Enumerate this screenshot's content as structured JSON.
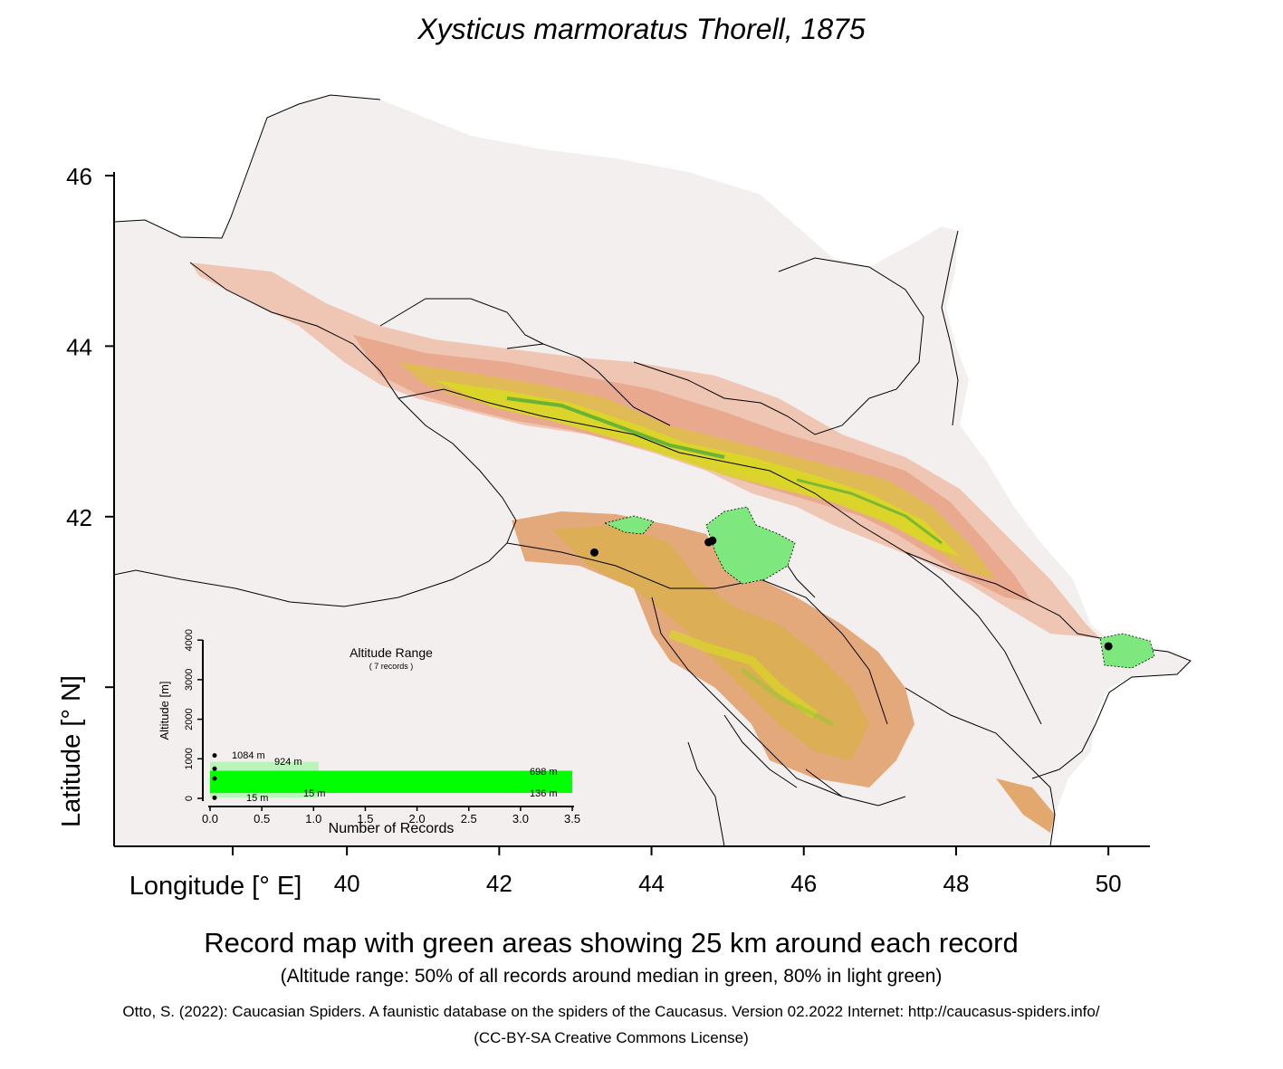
{
  "title": "Xysticus marmoratus Thorell, 1875",
  "map": {
    "x_axis_label": "Longitude [° E]",
    "y_axis_label": "Latitude [° N]",
    "x_ticks": [
      "40",
      "42",
      "44",
      "46",
      "48",
      "50"
    ],
    "y_ticks": [
      "46",
      "44",
      "42"
    ],
    "records": [
      {
        "lon": 43.25,
        "lat": 41.58
      },
      {
        "lon": 44.75,
        "lat": 41.7
      },
      {
        "lon": 44.8,
        "lat": 41.72
      },
      {
        "lon": 50.0,
        "lat": 40.48
      }
    ],
    "buffer_km": 25,
    "buffer_color": "#7ee87e",
    "relief_colors": [
      "#f2f2f2",
      "#e7a888",
      "#e0a65a",
      "#d6e000",
      "#33a02c"
    ]
  },
  "inset": {
    "title": "Altitude Range",
    "subtitle": "( 7 records )",
    "xlabel": "Number of Records",
    "ylabel": "Altitude [m]",
    "x_ticks": [
      "0.0",
      "0.5",
      "1.0",
      "1.5",
      "2.0",
      "2.5",
      "3.0",
      "3.5"
    ],
    "y_ticks": [
      "0",
      "1000",
      "2000",
      "3000",
      "4000"
    ],
    "labels": {
      "max": "1084 m",
      "p90": "924 m",
      "p75": "698 m",
      "p25": "136 m",
      "p10": "15 m",
      "min": "15 m"
    },
    "green": "#00ff00",
    "light_green": "#b9f5b9"
  },
  "caption": "Record map with green areas showing 25 km around each record",
  "subcaption": "(Altitude range: 50% of all records around median in green, 80% in light green)",
  "citation": "Otto, S. (2022): Caucasian Spiders. A faunistic database on the spiders of the Caucasus. Version 02.2022 Internet: http://caucasus-spiders.info/",
  "license": "(CC-BY-SA Creative Commons License)"
}
